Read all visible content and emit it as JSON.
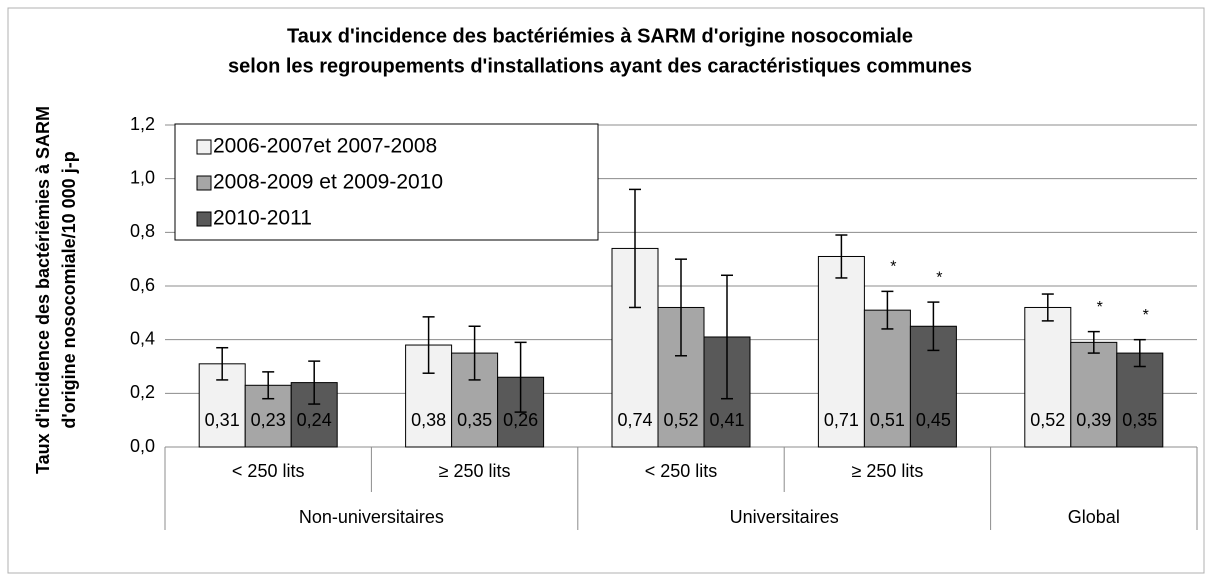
{
  "chart_data": {
    "type": "bar",
    "title": [
      "Taux d'incidence des bactériémies à SARM d'origine nosocomiale",
      "selon les regroupements d'installations ayant des caractéristiques communes"
    ],
    "y_label": [
      "Taux d'incidence  des bactériémies à SARM",
      "d'origine nosocomiale/10 000 j-p"
    ],
    "groups": [
      {
        "label": "Non-universitaires",
        "categories": [
          "< 250 lits",
          "≥ 250 lits"
        ]
      },
      {
        "label": "Universitaires",
        "categories": [
          "< 250 lits",
          "≥ 250 lits"
        ]
      },
      {
        "label": "Global",
        "categories": [
          null
        ]
      }
    ],
    "series": [
      {
        "name": "2006-2007et 2007-2008",
        "color": "#f2f2f2",
        "label_color": "#000000",
        "values": [
          0.31,
          0.38,
          0.74,
          0.71,
          0.52
        ],
        "value_labels": [
          "0,31",
          "0,38",
          "0,74",
          "0,71",
          "0,52"
        ],
        "errors": [
          0.06,
          0.105,
          0.22,
          0.08,
          0.05
        ],
        "markers": [
          null,
          null,
          null,
          null,
          null
        ]
      },
      {
        "name": "2008-2009 et 2009-2010",
        "color": "#a6a6a6",
        "label_color": "#000000",
        "values": [
          0.23,
          0.35,
          0.52,
          0.51,
          0.39
        ],
        "value_labels": [
          "0,23",
          "0,35",
          "0,52",
          "0,51",
          "0,39"
        ],
        "errors": [
          0.05,
          0.1,
          0.18,
          0.07,
          0.04
        ],
        "markers": [
          null,
          null,
          null,
          "*",
          "*"
        ]
      },
      {
        "name": "2010-2011",
        "color": "#595959",
        "label_color": "#ffffff",
        "values": [
          0.24,
          0.26,
          0.41,
          0.45,
          0.35
        ],
        "value_labels": [
          "0,24",
          "0,26",
          "0,41",
          "0,45",
          "0,35"
        ],
        "errors": [
          0.08,
          0.13,
          0.23,
          0.09,
          0.05
        ],
        "markers": [
          null,
          null,
          null,
          "*",
          "*"
        ]
      }
    ],
    "ylim": [
      0,
      1.2
    ],
    "yticks": [
      {
        "value": 0,
        "label": "0,0"
      },
      {
        "value": 0.2,
        "label": "0,2"
      },
      {
        "value": 0.4,
        "label": "0,4"
      },
      {
        "value": 0.6,
        "label": "0,6"
      },
      {
        "value": 0.8,
        "label": "0,8"
      },
      {
        "value": 1.0,
        "label": "1,0"
      },
      {
        "value": 1.2,
        "label": "1,2"
      }
    ],
    "grid": true,
    "legend": "top-left"
  }
}
